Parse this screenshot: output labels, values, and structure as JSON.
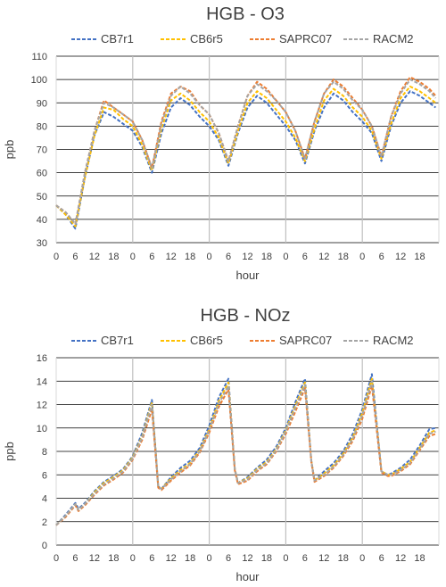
{
  "colors": {
    "CB7r1": "#4472C4",
    "CB6r5": "#FFC000",
    "SAPRC07": "#ED7D31",
    "RACM2": "#A5A5A5"
  },
  "chart_data": [
    {
      "type": "line",
      "title": "HGB - O3",
      "xlabel": "hour",
      "ylabel": "ppb",
      "ylim": [
        30,
        110
      ],
      "yticks": [
        30,
        40,
        50,
        60,
        70,
        80,
        90,
        100,
        110
      ],
      "xticklabels": [
        "0",
        "6",
        "12",
        "18",
        "0",
        "6",
        "12",
        "18",
        "0",
        "6",
        "12",
        "18",
        "0",
        "6",
        "12",
        "18",
        "0",
        "6",
        "12",
        "18"
      ],
      "grid": true,
      "legend": "top",
      "day_separators": [
        24,
        48,
        72,
        96
      ],
      "x": [
        0,
        3,
        6,
        9,
        12,
        15,
        18,
        21,
        24,
        27,
        30,
        33,
        36,
        39,
        42,
        45,
        48,
        51,
        54,
        57,
        60,
        63,
        66,
        69,
        72,
        75,
        78,
        81,
        84,
        87,
        90,
        93,
        96,
        99,
        102,
        105,
        108,
        111,
        114,
        117,
        119
      ],
      "series": [
        {
          "name": "CB7r1",
          "values": [
            46,
            42,
            36,
            58,
            76,
            86,
            84,
            81,
            78,
            71,
            60,
            77,
            88,
            92,
            89,
            84,
            80,
            74,
            63,
            77,
            88,
            93,
            90,
            85,
            80,
            74,
            64,
            78,
            88,
            94,
            91,
            86,
            82,
            77,
            65,
            80,
            90,
            95,
            93,
            90,
            88
          ]
        },
        {
          "name": "CB6r5",
          "values": [
            46,
            42,
            37,
            58,
            76,
            88,
            87,
            83,
            80,
            72,
            61,
            79,
            91,
            94,
            91,
            86,
            82,
            75,
            64,
            78,
            90,
            95,
            92,
            87,
            82,
            75,
            65,
            79,
            91,
            96,
            93,
            88,
            84,
            78,
            66,
            81,
            92,
            97,
            95,
            92,
            90
          ]
        },
        {
          "name": "SAPRC07",
          "values": [
            46,
            43,
            38,
            60,
            78,
            91,
            88,
            85,
            82,
            74,
            62,
            82,
            94,
            97,
            95,
            89,
            85,
            77,
            65,
            80,
            93,
            99,
            96,
            91,
            86,
            78,
            66,
            82,
            94,
            100,
            97,
            92,
            87,
            80,
            67,
            84,
            95,
            101,
            99,
            96,
            93
          ]
        },
        {
          "name": "RACM2",
          "values": [
            46,
            43,
            38,
            60,
            78,
            90,
            88,
            85,
            82,
            74,
            62,
            81,
            93,
            97,
            94,
            89,
            85,
            77,
            65,
            80,
            93,
            98,
            95,
            91,
            86,
            78,
            66,
            82,
            94,
            99,
            96,
            91,
            87,
            80,
            67,
            84,
            94,
            100,
            98,
            95,
            92
          ]
        }
      ]
    },
    {
      "type": "line",
      "title": "HGB - NOz",
      "xlabel": "hour",
      "ylabel": "ppb",
      "ylim": [
        0,
        16
      ],
      "yticks": [
        0,
        2,
        4,
        6,
        8,
        10,
        12,
        14,
        16
      ],
      "xticklabels": [
        "0",
        "6",
        "12",
        "18",
        "0",
        "6",
        "12",
        "18",
        "0",
        "6",
        "12",
        "18",
        "0",
        "6",
        "12",
        "18",
        "0",
        "6",
        "12",
        "18"
      ],
      "grid": true,
      "legend": "top",
      "day_separators": [
        24,
        48,
        72,
        96
      ],
      "x": [
        0,
        3,
        6,
        7,
        9,
        12,
        15,
        18,
        21,
        24,
        27,
        30,
        32,
        33,
        36,
        39,
        42,
        45,
        48,
        51,
        54,
        56,
        57,
        60,
        63,
        66,
        69,
        72,
        75,
        78,
        80,
        81,
        84,
        87,
        90,
        93,
        96,
        99,
        102,
        104,
        105,
        108,
        111,
        114,
        117,
        119
      ],
      "series": [
        {
          "name": "CB7r1",
          "values": [
            1.7,
            2.6,
            3.6,
            3.1,
            3.6,
            4.6,
            5.4,
            5.9,
            6.5,
            7.6,
            9.6,
            12.4,
            5.0,
            4.8,
            5.8,
            6.6,
            7.2,
            8.3,
            10.2,
            12.6,
            14.2,
            6.5,
            5.3,
            5.8,
            6.6,
            7.3,
            8.4,
            10.0,
            12.2,
            14.2,
            7.2,
            5.5,
            6.3,
            7.0,
            8.0,
            9.5,
            11.6,
            14.6,
            6.3,
            6.0,
            6.1,
            6.6,
            7.3,
            8.5,
            9.9,
            10.0
          ]
        },
        {
          "name": "CB6r5",
          "values": [
            1.7,
            2.5,
            3.5,
            3.0,
            3.5,
            4.5,
            5.3,
            5.8,
            6.4,
            7.5,
            9.3,
            12.2,
            5.0,
            4.8,
            5.7,
            6.4,
            7.0,
            8.1,
            9.9,
            12.3,
            13.9,
            6.5,
            5.3,
            5.7,
            6.5,
            7.1,
            8.2,
            9.8,
            11.9,
            13.9,
            7.2,
            5.5,
            6.1,
            6.8,
            7.8,
            9.2,
            11.3,
            14.2,
            6.3,
            6.0,
            6.0,
            6.5,
            7.1,
            8.3,
            9.6,
            9.8
          ]
        },
        {
          "name": "SAPRC07",
          "values": [
            1.7,
            2.4,
            3.4,
            2.9,
            3.4,
            4.3,
            5.1,
            5.6,
            6.2,
            7.3,
            9.0,
            11.6,
            4.9,
            4.7,
            5.5,
            6.2,
            6.8,
            7.9,
            9.6,
            11.8,
            13.3,
            6.4,
            5.2,
            5.5,
            6.3,
            6.9,
            8.0,
            9.5,
            11.4,
            13.4,
            7.1,
            5.4,
            5.9,
            6.6,
            7.6,
            8.9,
            10.8,
            13.6,
            6.2,
            5.9,
            5.9,
            6.3,
            6.9,
            8.1,
            9.3,
            9.5
          ]
        },
        {
          "name": "RACM2",
          "values": [
            1.7,
            2.5,
            3.5,
            3.0,
            3.5,
            4.4,
            5.2,
            5.7,
            6.3,
            7.4,
            9.2,
            12.0,
            5.0,
            4.8,
            5.6,
            6.3,
            6.9,
            8.0,
            9.8,
            12.1,
            13.6,
            6.5,
            5.3,
            5.6,
            6.4,
            7.0,
            8.1,
            9.7,
            11.7,
            13.7,
            7.2,
            5.5,
            6.0,
            6.7,
            7.7,
            9.1,
            11.1,
            14.0,
            6.3,
            6.0,
            6.0,
            6.4,
            7.0,
            8.2,
            9.5,
            9.7
          ]
        }
      ]
    }
  ]
}
